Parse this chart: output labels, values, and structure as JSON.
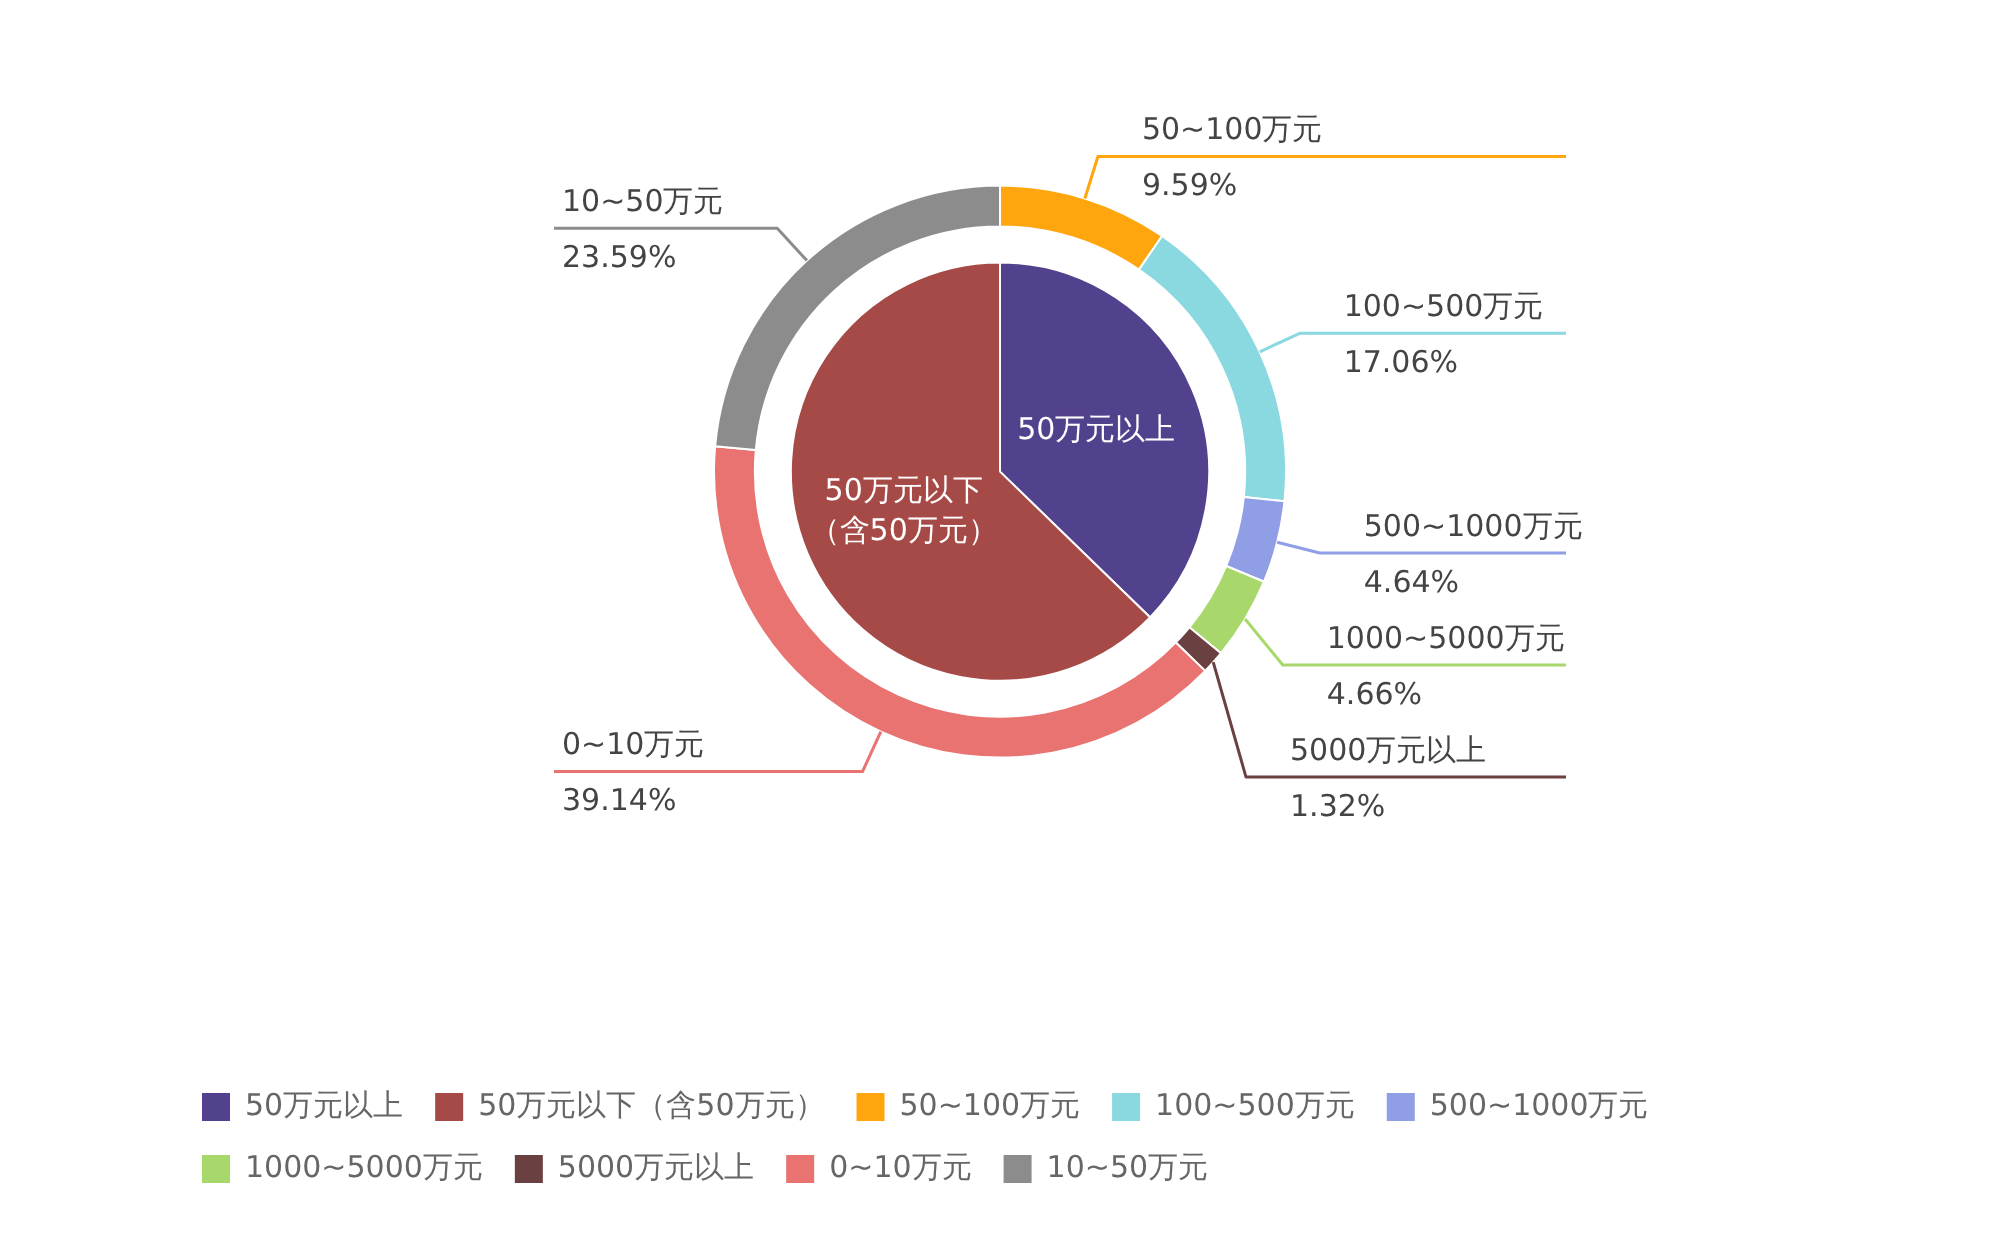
{
  "chart_data": {
    "type": "donut",
    "categories": [
      "50万元以上",
      "50万元以下（含50万元）",
      "50~100万元",
      "100~500万元",
      "500~1000万元",
      "1000~5000万元",
      "5000万元以上",
      "0~10万元",
      "10~50万元"
    ],
    "colors": [
      "#52418c",
      "#a64a47",
      "#ffa60f",
      "#8ad8e0",
      "#909ee6",
      "#a8d86b",
      "#6b4040",
      "#e87370",
      "#8c8c8c"
    ],
    "series": [
      {
        "values": [
          null,
          null,
          9.59,
          17.06,
          4.64,
          4.66,
          1.32,
          39.14,
          23.59
        ],
        "value_labels": [
          null,
          null,
          "9.59%",
          "17.06%",
          "4.64%",
          "4.66%",
          "1.32%",
          "39.14%",
          "23.59%"
        ]
      },
      {
        "values": [
          37.27,
          62.73,
          null,
          null,
          null,
          null,
          null,
          null,
          null
        ]
      }
    ],
    "legend": "bottom"
  }
}
